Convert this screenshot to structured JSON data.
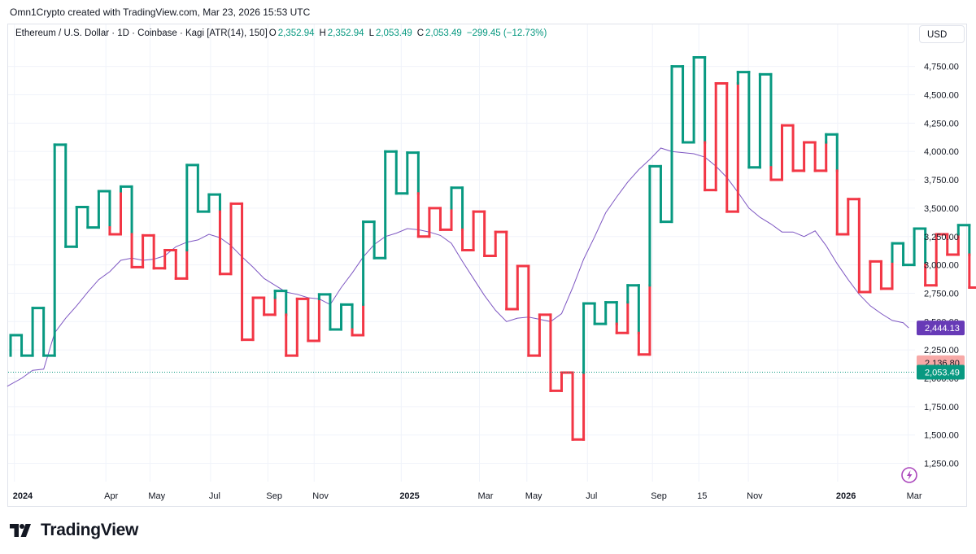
{
  "credit": "Omn1Crypto created with TradingView.com, Mar 23, 2026 15:53 UTC",
  "legend": {
    "symbol": "Ethereum / U.S. Dollar · 1D · Coinbase · Kagi [ATR(14), 150]",
    "o_label": "O",
    "o_value": "2,352.94",
    "h_label": "H",
    "h_value": "2,352.94",
    "l_label": "L",
    "l_value": "2,053.49",
    "c_label": "C",
    "c_value": "2,053.49",
    "change": "−299.45 (−12.73%)"
  },
  "currency": "USD",
  "brand": "TradingView",
  "colors": {
    "up": "#089981",
    "down": "#f23645",
    "ma": "#7e57c2",
    "grid": "#f0f3fa",
    "price_line": "#089981"
  },
  "chart_data": {
    "type": "kagi",
    "title": "Ethereum / U.S. Dollar · 1D · Coinbase · Kagi [ATR(14), 150]",
    "ylim": [
      1100,
      4950
    ],
    "y_ticks": [
      1250,
      1500,
      1750,
      2000,
      2250,
      2500,
      2750,
      3000,
      3250,
      3500,
      3750,
      4000,
      4250,
      4500,
      4750
    ],
    "y_tick_labels": [
      "1,250.00",
      "1,500.00",
      "1,750.00",
      "2,000.00",
      "2,250.00",
      "2,500.00",
      "2,750.00",
      "3,000.00",
      "3,250.00",
      "3,500.00",
      "3,750.00",
      "4,000.00",
      "4,250.00",
      "4,500.00",
      "4,750.00"
    ],
    "x_ticks": [
      {
        "label": "2024",
        "bold": true,
        "index": 0.2
      },
      {
        "label": "Apr",
        "bold": false,
        "index": 8.5
      },
      {
        "label": "May",
        "bold": false,
        "index": 12.5
      },
      {
        "label": "Jul",
        "bold": false,
        "index": 18.0
      },
      {
        "label": "Sep",
        "bold": false,
        "index": 23.2
      },
      {
        "label": "Nov",
        "bold": false,
        "index": 27.4
      },
      {
        "label": "2025",
        "bold": true,
        "index": 35.3
      },
      {
        "label": "Mar",
        "bold": false,
        "index": 42.4
      },
      {
        "label": "May",
        "bold": false,
        "index": 46.7
      },
      {
        "label": "Jul",
        "bold": false,
        "index": 52.2
      },
      {
        "label": "Sep",
        "bold": false,
        "index": 58.1
      },
      {
        "label": "15",
        "bold": false,
        "index": 62.3
      },
      {
        "label": "Nov",
        "bold": false,
        "index": 66.8
      },
      {
        "label": "2026",
        "bold": true,
        "index": 74.9
      },
      {
        "label": "Mar",
        "bold": false,
        "index": 81.3
      }
    ],
    "kagi_start": 2200,
    "kagi_points": [
      2380,
      2200,
      2620,
      2200,
      4060,
      3160,
      3510,
      3330,
      3650,
      3270,
      3690,
      2980,
      3260,
      2970,
      3130,
      2880,
      3880,
      3470,
      3620,
      2920,
      3540,
      2340,
      2710,
      2560,
      2770,
      2200,
      2700,
      2330,
      2740,
      2430,
      2650,
      2380,
      3380,
      3060,
      4000,
      3630,
      3990,
      3250,
      3500,
      3310,
      3680,
      3130,
      3470,
      3080,
      3290,
      2610,
      2990,
      2200,
      2560,
      1890,
      2050,
      1460,
      2660,
      2480,
      2670,
      2400,
      2820,
      2210,
      3870,
      3380,
      4750,
      4080,
      4830,
      3660,
      4600,
      3470,
      4700,
      3860,
      4680,
      3750,
      4230,
      3830,
      4080,
      3830,
      4150,
      3270,
      3580,
      2760,
      3030,
      2790,
      3190,
      3000,
      3320,
      2820,
      3270,
      3090,
      3350,
      2800,
      3020,
      1820,
      2100,
      1840,
      2120,
      1940,
      2350,
      2053.49
    ],
    "sma": [
      [
        -0.3,
        1930
      ],
      [
        1,
        2000
      ],
      [
        2,
        2070
      ],
      [
        3,
        2080
      ],
      [
        4,
        2400
      ],
      [
        5,
        2530
      ],
      [
        6,
        2640
      ],
      [
        7,
        2760
      ],
      [
        8,
        2870
      ],
      [
        9,
        2940
      ],
      [
        10,
        3040
      ],
      [
        11,
        3060
      ],
      [
        12,
        3040
      ],
      [
        13,
        3050
      ],
      [
        14,
        3080
      ],
      [
        15,
        3160
      ],
      [
        16,
        3200
      ],
      [
        17,
        3220
      ],
      [
        18,
        3270
      ],
      [
        19,
        3240
      ],
      [
        20,
        3170
      ],
      [
        21,
        3070
      ],
      [
        22,
        2980
      ],
      [
        23,
        2880
      ],
      [
        24,
        2820
      ],
      [
        25,
        2760
      ],
      [
        26,
        2740
      ],
      [
        27,
        2710
      ],
      [
        28,
        2700
      ],
      [
        29,
        2650
      ],
      [
        30,
        2800
      ],
      [
        31,
        2930
      ],
      [
        32,
        3070
      ],
      [
        33,
        3180
      ],
      [
        34,
        3250
      ],
      [
        35,
        3280
      ],
      [
        36,
        3320
      ],
      [
        37,
        3310
      ],
      [
        38,
        3290
      ],
      [
        39,
        3260
      ],
      [
        40,
        3190
      ],
      [
        41,
        3030
      ],
      [
        42,
        2880
      ],
      [
        43,
        2730
      ],
      [
        44,
        2600
      ],
      [
        45,
        2500
      ],
      [
        46,
        2530
      ],
      [
        47,
        2540
      ],
      [
        48,
        2520
      ],
      [
        49,
        2500
      ],
      [
        50,
        2570
      ],
      [
        51,
        2800
      ],
      [
        52,
        3050
      ],
      [
        53,
        3250
      ],
      [
        54,
        3460
      ],
      [
        55,
        3600
      ],
      [
        56,
        3730
      ],
      [
        57,
        3840
      ],
      [
        58,
        3930
      ],
      [
        59,
        4030
      ],
      [
        60,
        4000
      ],
      [
        61,
        3990
      ],
      [
        62,
        3980
      ],
      [
        63,
        3950
      ],
      [
        64,
        3870
      ],
      [
        65,
        3770
      ],
      [
        66,
        3640
      ],
      [
        67,
        3500
      ],
      [
        68,
        3420
      ],
      [
        69,
        3360
      ],
      [
        70,
        3290
      ],
      [
        71,
        3290
      ],
      [
        72,
        3250
      ],
      [
        73,
        3300
      ],
      [
        74,
        3170
      ],
      [
        75,
        3010
      ],
      [
        76,
        2870
      ],
      [
        77,
        2740
      ],
      [
        78,
        2640
      ],
      [
        79,
        2570
      ],
      [
        80,
        2510
      ],
      [
        81,
        2490
      ],
      [
        81.5,
        2444.13
      ]
    ],
    "badges": [
      {
        "value": 2444.13,
        "label": "2,444.13",
        "bg": "#673ab7",
        "fg": "#ffffff"
      },
      {
        "value": 2136.8,
        "label": "2,136.80",
        "bg": "#f7a9a7",
        "fg": "#131722"
      },
      {
        "value": 2053.49,
        "label": "2,053.49",
        "bg": "#089981",
        "fg": "#ffffff"
      }
    ],
    "last_price": 2053.49,
    "grid": true
  }
}
